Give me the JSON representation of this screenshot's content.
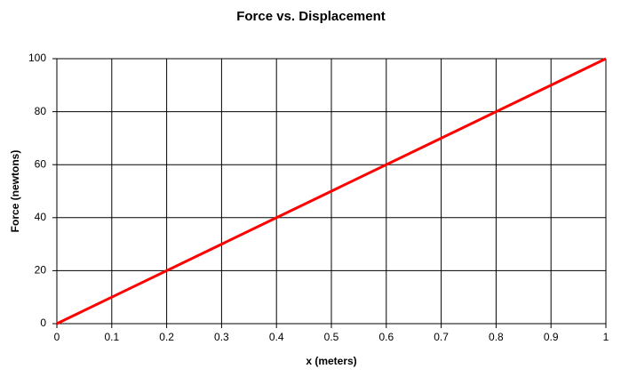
{
  "chart_data": {
    "type": "line",
    "title": "Force vs. Displacement",
    "x_label": "x (meters)",
    "y_label": "Force (newtons)",
    "x": [
      0,
      1
    ],
    "values": [
      0,
      100
    ],
    "color": "#ff0000",
    "xlim": [
      0,
      1
    ],
    "xticks": [
      0,
      0.1,
      0.2,
      0.3,
      0.4,
      0.5,
      0.6,
      0.7,
      0.8,
      0.9,
      1
    ],
    "ylim": [
      0,
      100
    ],
    "yticks": [
      0,
      20,
      40,
      60,
      80,
      100
    ],
    "grid": true
  }
}
